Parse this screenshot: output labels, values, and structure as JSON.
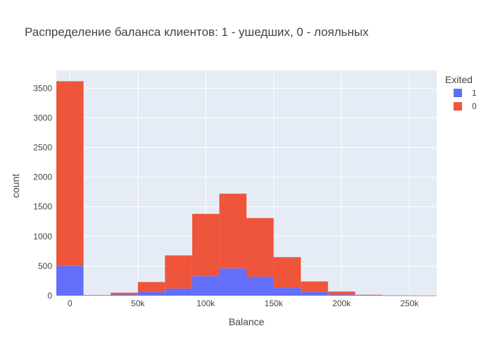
{
  "chart_data": {
    "type": "bar",
    "barmode": "stack",
    "title": "Распределение баланса клиентов: 1 - ушедших, 0 - лояльных",
    "xlabel": "Balance",
    "ylabel": "count",
    "bin_width": 20000,
    "bin_starts": [
      -10000,
      10000,
      30000,
      50000,
      70000,
      90000,
      110000,
      130000,
      150000,
      170000,
      190000,
      210000,
      230000,
      250000
    ],
    "xlim": [
      -10000,
      270000
    ],
    "ylim": [
      0,
      3800
    ],
    "x_tick_values": [
      0,
      50000,
      100000,
      150000,
      200000,
      250000
    ],
    "x_tick_labels": [
      "0",
      "50k",
      "100k",
      "150k",
      "200k",
      "250k"
    ],
    "y_tick_values": [
      0,
      500,
      1000,
      1500,
      2000,
      2500,
      3000,
      3500
    ],
    "y_tick_labels": [
      "0",
      "500",
      "1000",
      "1500",
      "2000",
      "2500",
      "3000",
      "3500"
    ],
    "grid": true,
    "legend_title": "Exited",
    "legend_position": "top-right",
    "series": [
      {
        "name": "1",
        "color": "#636efa",
        "values": [
          500,
          0,
          20,
          60,
          120,
          330,
          460,
          320,
          130,
          60,
          20,
          5,
          2,
          1
        ]
      },
      {
        "name": "0",
        "color": "#ef553b",
        "values": [
          3117,
          10,
          30,
          170,
          560,
          1050,
          1260,
          990,
          520,
          180,
          50,
          10,
          3,
          1
        ]
      }
    ]
  }
}
